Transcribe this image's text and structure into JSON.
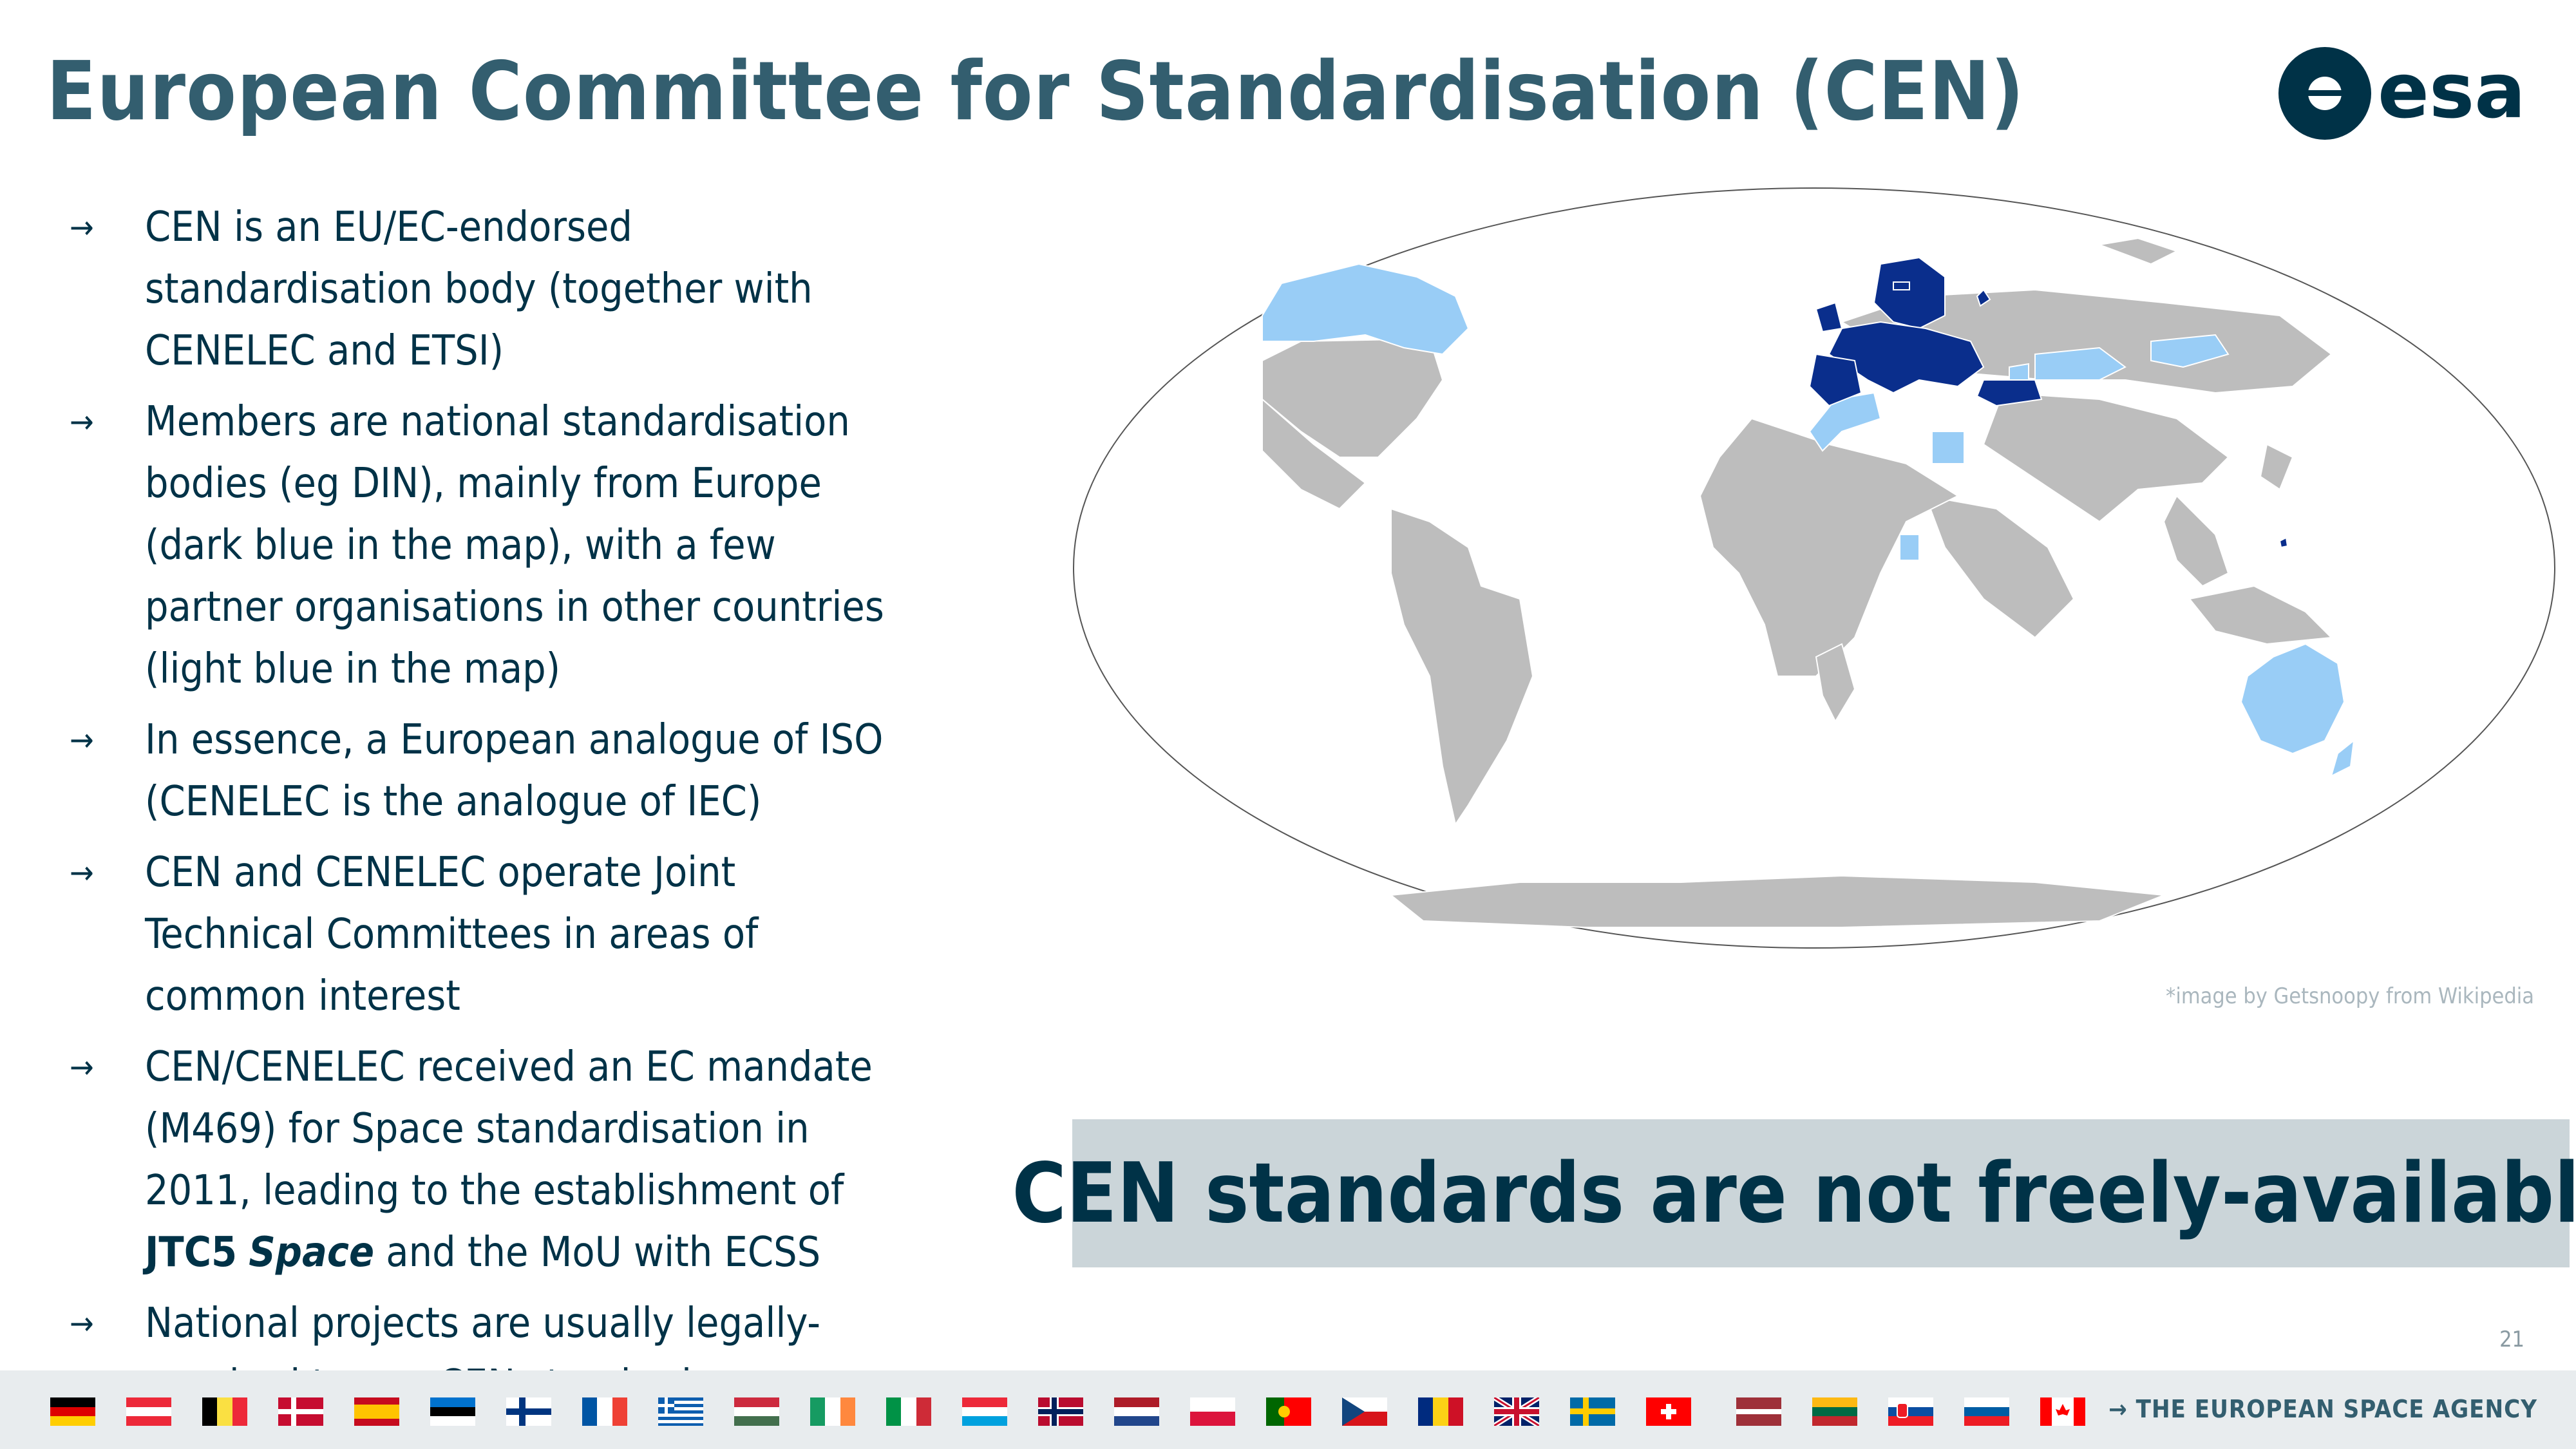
{
  "slide": {
    "title": "European Committee for Standardisation (CEN)",
    "logo_text": "esa",
    "page_number": "21",
    "footer_text": "→ THE EUROPEAN SPACE AGENCY",
    "image_credit": "*image by Getsnoopy from Wikipedia",
    "callout": "CEN standards are not freely-available"
  },
  "bullets": [
    {
      "text": "CEN is an EU/EC-endorsed standardisation body (together with CENELEC and ETSI)"
    },
    {
      "text": "Members are national standardisation bodies (eg DIN), mainly from Europe (dark blue in the map), with a few partner organisations in other countries (light blue in the map)"
    },
    {
      "text": "In essence, a European analogue of ISO (CENELEC is the analogue of IEC)"
    },
    {
      "text": "CEN and CENELEC operate Joint Technical Committees in areas of common interest"
    },
    {
      "pre": "CEN/CENELEC received an EC mandate (M469) for Space standardisation in 2011, leading to the establishment of ",
      "bold": "JTC5",
      "italic": "Space",
      "post": "and the MoU with ECSS"
    },
    {
      "text": "National projects are usually legally-required to use CEN standards"
    }
  ],
  "bullet_marker": "→",
  "map_colors": {
    "member": "#0a2e8c",
    "partner": "#99cdf6",
    "other": "#bdbdbd",
    "ocean": "#ffffff"
  },
  "flags": [
    "germany",
    "austria",
    "belgium",
    "denmark",
    "spain",
    "estonia",
    "finland",
    "france",
    "greece",
    "hungary",
    "ireland",
    "italy",
    "luxembourg",
    "norway",
    "netherlands",
    "poland",
    "portugal",
    "czechia",
    "romania",
    "united-kingdom",
    "sweden",
    "switzerland",
    "latvia",
    "lithuania",
    "slovakia",
    "slovenia",
    "canada"
  ]
}
